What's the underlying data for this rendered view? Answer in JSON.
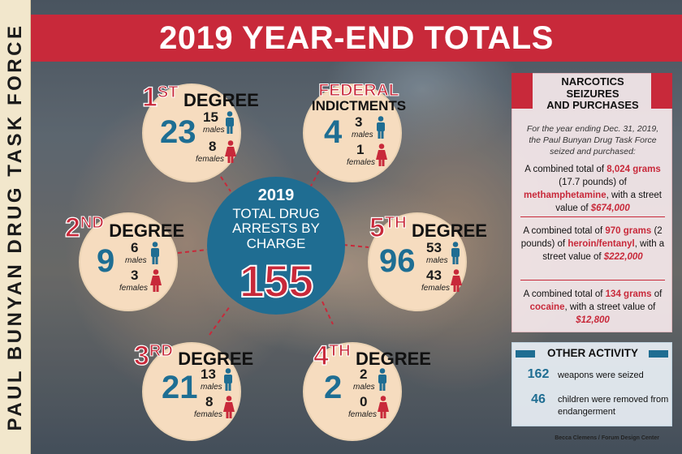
{
  "side_label": "PAUL BUNYAN DRUG TASK FORCE",
  "title": "2019 YEAR-END TOTALS",
  "colors": {
    "red": "#c8293a",
    "blue": "#1f6d92",
    "cream": "#f6dcbf",
    "band": "#f2e7cc"
  },
  "icons": {
    "male": "male-person-icon",
    "female": "female-person-icon"
  },
  "center": {
    "year": "2019",
    "subtitle_lines": [
      "TOTAL DRUG",
      "ARRESTS BY",
      "CHARGE"
    ],
    "total": "155"
  },
  "charges": {
    "first": {
      "ordinal": "1",
      "suffix": "ST",
      "label": "DEGREE",
      "total": "23",
      "males": "15",
      "females": "8",
      "males_label": "males",
      "females_label": "females"
    },
    "federal": {
      "label_top": "FEDERAL",
      "label_bottom": "INDICTMENTS",
      "total": "4",
      "males": "3",
      "females": "1",
      "males_label": "males",
      "females_label": "females"
    },
    "second": {
      "ordinal": "2",
      "suffix": "ND",
      "label": "DEGREE",
      "total": "9",
      "males": "6",
      "females": "3",
      "males_label": "males",
      "females_label": "females"
    },
    "fifth": {
      "ordinal": "5",
      "suffix": "TH",
      "label": "DEGREE",
      "total": "96",
      "males": "53",
      "females": "43",
      "males_label": "males",
      "females_label": "females"
    },
    "third": {
      "ordinal": "3",
      "suffix": "RD",
      "label": "DEGREE",
      "total": "21",
      "males": "13",
      "females": "8",
      "males_label": "males",
      "females_label": "females"
    },
    "fourth": {
      "ordinal": "4",
      "suffix": "TH",
      "label": "DEGREE",
      "total": "2",
      "males": "2",
      "females": "0",
      "males_label": "males",
      "females_label": "females"
    }
  },
  "narcotics": {
    "title_lines": [
      "NARCOTICS",
      "SEIZURES",
      "AND PURCHASES"
    ],
    "intro": "For the year ending Dec. 31, 2019, the Paul Bunyan Drug Task Force seized and purchased:",
    "meth": {
      "t1": "A combined total of ",
      "h1": "8,024 grams",
      "t2": " (17.7 pounds) of ",
      "h2": "methamphetamine",
      "t3": ", with a street value of ",
      "h3": "$674,000"
    },
    "heroin": {
      "t1": "A combined total of ",
      "h1": "970 grams",
      "t2": " (2 pounds) of ",
      "h2": "heroin/fentanyl",
      "t3": ", with a street value of ",
      "h3": "$222,000"
    },
    "cocaine": {
      "t1": "A combined total of ",
      "h1": "134 grams",
      "t2": " of ",
      "h2": "cocaine",
      "t3": ", with a street value of ",
      "h3": "$12,800"
    }
  },
  "other_activity": {
    "title": "OTHER ACTIVITY",
    "items": [
      {
        "number": "162",
        "text": "weapons were seized"
      },
      {
        "number": "46",
        "text": "children were removed from endangerment"
      }
    ]
  },
  "credit": "Becca Clemens / Forum Design Center"
}
